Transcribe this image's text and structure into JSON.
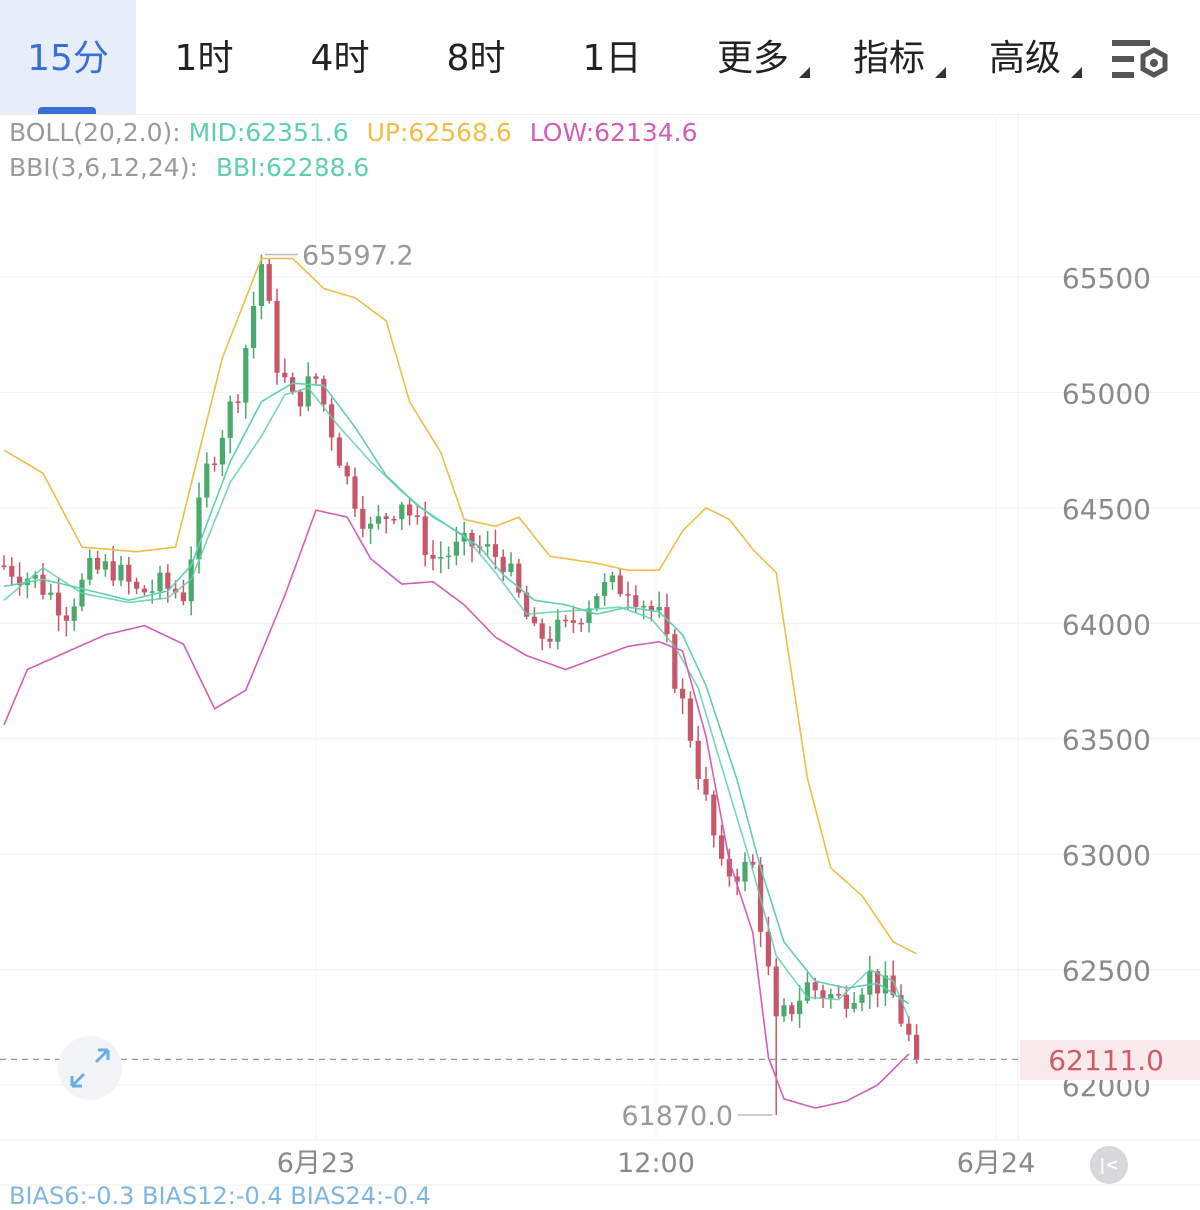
{
  "tabs": [
    {
      "label": "15分",
      "active": true,
      "dropdown": false
    },
    {
      "label": "1时",
      "active": false,
      "dropdown": false
    },
    {
      "label": "4时",
      "active": false,
      "dropdown": false
    },
    {
      "label": "8时",
      "active": false,
      "dropdown": false
    },
    {
      "label": "1日",
      "active": false,
      "dropdown": false
    },
    {
      "label": "更多",
      "active": false,
      "dropdown": true
    },
    {
      "label": "指标",
      "active": false,
      "dropdown": true
    },
    {
      "label": "高级",
      "active": false,
      "dropdown": true
    }
  ],
  "settings_icon": "chart-settings-icon",
  "boll": {
    "prefix": "BOLL(20,2.0):",
    "mid": "MID:62351.6",
    "up": "UP:62568.6",
    "low": "LOW:62134.6"
  },
  "bbi": {
    "prefix": "BBI(3,6,12,24):",
    "value": "BBI:62288.6"
  },
  "colors": {
    "up": "#f0bd45",
    "mid": "#5fcfae",
    "low": "#d35eb7",
    "bbi": "#5fcfae",
    "rise": "#4aa96c",
    "fall": "#c9576a",
    "grid": "#f0f0f0",
    "axis_text": "#8a8a8a",
    "active_tab": "#3a70d6",
    "prefix": "#9a9a9a"
  },
  "last_price": "62111.0",
  "max_label": "65597.2",
  "min_label": "61870.0",
  "bias_row": "BIAS6:-0.3 BIAS12:-0.4 BIAS24:-0.4",
  "chart_data": {
    "type": "candlestick",
    "interval": "15分",
    "y_ticks": [
      62000,
      62500,
      63000,
      63500,
      64000,
      64500,
      65000,
      65500
    ],
    "y_tick_labels": [
      "62000",
      "62500",
      "63000",
      "63500",
      "64000",
      "64500",
      "65000",
      "65500"
    ],
    "x_ticks": [
      "6月23",
      "12:00",
      "6月24"
    ],
    "ylim": [
      61750,
      66100
    ],
    "high": 65597.2,
    "low": 61870.0,
    "last": 62111.0,
    "candle_count": 118,
    "anchors": [
      [
        0,
        64250
      ],
      [
        4,
        64190
      ],
      [
        8,
        64060
      ],
      [
        11,
        64220
      ],
      [
        14,
        64240
      ],
      [
        17,
        64130
      ],
      [
        20,
        64160
      ],
      [
        23,
        64130
      ],
      [
        26,
        64660
      ],
      [
        30,
        65020
      ],
      [
        33,
        65560
      ],
      [
        35,
        65130
      ],
      [
        37,
        64960
      ],
      [
        40,
        65060
      ],
      [
        44,
        64620
      ],
      [
        47,
        64400
      ],
      [
        51,
        64540
      ],
      [
        55,
        64280
      ],
      [
        60,
        64340
      ],
      [
        64,
        64280
      ],
      [
        68,
        63940
      ],
      [
        72,
        63970
      ],
      [
        76,
        64140
      ],
      [
        80,
        64170
      ],
      [
        84,
        64020
      ],
      [
        88,
        63520
      ],
      [
        92,
        62920
      ],
      [
        96,
        62940
      ],
      [
        99,
        62250
      ],
      [
        103,
        62430
      ],
      [
        107,
        62370
      ],
      [
        111,
        62470
      ],
      [
        114,
        62380
      ],
      [
        117,
        62111
      ]
    ],
    "series": [
      {
        "name": "UP",
        "values": [
          [
            0,
            64750
          ],
          [
            5,
            64650
          ],
          [
            10,
            64330
          ],
          [
            17,
            64310
          ],
          [
            22,
            64330
          ],
          [
            28,
            65150
          ],
          [
            33,
            65580
          ],
          [
            37,
            65580
          ],
          [
            41,
            65450
          ],
          [
            45,
            65410
          ],
          [
            49,
            65310
          ],
          [
            52,
            64960
          ],
          [
            56,
            64740
          ],
          [
            59,
            64450
          ],
          [
            63,
            64420
          ],
          [
            66,
            64460
          ],
          [
            70,
            64290
          ],
          [
            76,
            64260
          ],
          [
            80,
            64230
          ],
          [
            84,
            64230
          ],
          [
            87,
            64400
          ],
          [
            90,
            64500
          ],
          [
            93,
            64450
          ],
          [
            96,
            64320
          ],
          [
            99,
            64220
          ],
          [
            103,
            63330
          ],
          [
            106,
            62940
          ],
          [
            110,
            62820
          ],
          [
            114,
            62620
          ],
          [
            117,
            62568.6
          ]
        ]
      },
      {
        "name": "MID",
        "values": [
          [
            0,
            64160
          ],
          [
            5,
            64190
          ],
          [
            10,
            64150
          ],
          [
            16,
            64100
          ],
          [
            21,
            64140
          ],
          [
            24,
            64250
          ],
          [
            29,
            64700
          ],
          [
            33,
            64960
          ],
          [
            37,
            65040
          ],
          [
            41,
            65030
          ],
          [
            45,
            64850
          ],
          [
            49,
            64640
          ],
          [
            53,
            64510
          ],
          [
            57,
            64420
          ],
          [
            61,
            64330
          ],
          [
            64,
            64210
          ],
          [
            68,
            64100
          ],
          [
            72,
            64080
          ],
          [
            76,
            64040
          ],
          [
            80,
            64070
          ],
          [
            84,
            64050
          ],
          [
            87,
            63950
          ],
          [
            90,
            63730
          ],
          [
            94,
            63320
          ],
          [
            97,
            62940
          ],
          [
            100,
            62620
          ],
          [
            104,
            62450
          ],
          [
            108,
            62420
          ],
          [
            112,
            62440
          ],
          [
            116,
            62351.6
          ]
        ]
      },
      {
        "name": "BBI",
        "values": [
          [
            0,
            64100
          ],
          [
            5,
            64240
          ],
          [
            10,
            64130
          ],
          [
            16,
            64090
          ],
          [
            21,
            64110
          ],
          [
            24,
            64190
          ],
          [
            29,
            64610
          ],
          [
            33,
            64810
          ],
          [
            36,
            64990
          ],
          [
            39,
            65020
          ],
          [
            43,
            64850
          ],
          [
            47,
            64700
          ],
          [
            51,
            64570
          ],
          [
            55,
            64460
          ],
          [
            59,
            64380
          ],
          [
            63,
            64220
          ],
          [
            67,
            64040
          ],
          [
            71,
            64050
          ],
          [
            75,
            64060
          ],
          [
            79,
            64070
          ],
          [
            83,
            64020
          ],
          [
            86,
            63900
          ],
          [
            89,
            63720
          ],
          [
            92,
            63380
          ],
          [
            96,
            62930
          ],
          [
            99,
            62560
          ],
          [
            103,
            62380
          ],
          [
            107,
            62370
          ],
          [
            111,
            62500
          ],
          [
            114,
            62450
          ],
          [
            116,
            62288.6
          ]
        ]
      },
      {
        "name": "LOW",
        "values": [
          [
            0,
            63560
          ],
          [
            3,
            63800
          ],
          [
            7,
            63860
          ],
          [
            13,
            63950
          ],
          [
            18,
            63990
          ],
          [
            23,
            63910
          ],
          [
            27,
            63630
          ],
          [
            31,
            63710
          ],
          [
            36,
            64120
          ],
          [
            40,
            64490
          ],
          [
            44,
            64460
          ],
          [
            47,
            64280
          ],
          [
            51,
            64170
          ],
          [
            55,
            64180
          ],
          [
            59,
            64080
          ],
          [
            63,
            63940
          ],
          [
            67,
            63860
          ],
          [
            72,
            63800
          ],
          [
            76,
            63850
          ],
          [
            80,
            63900
          ],
          [
            84,
            63920
          ],
          [
            87,
            63880
          ],
          [
            90,
            63510
          ],
          [
            93,
            62970
          ],
          [
            96,
            62660
          ],
          [
            98,
            62120
          ],
          [
            100,
            61940
          ],
          [
            104,
            61900
          ],
          [
            108,
            61930
          ],
          [
            112,
            62000
          ],
          [
            116,
            62134.6
          ]
        ]
      }
    ]
  }
}
